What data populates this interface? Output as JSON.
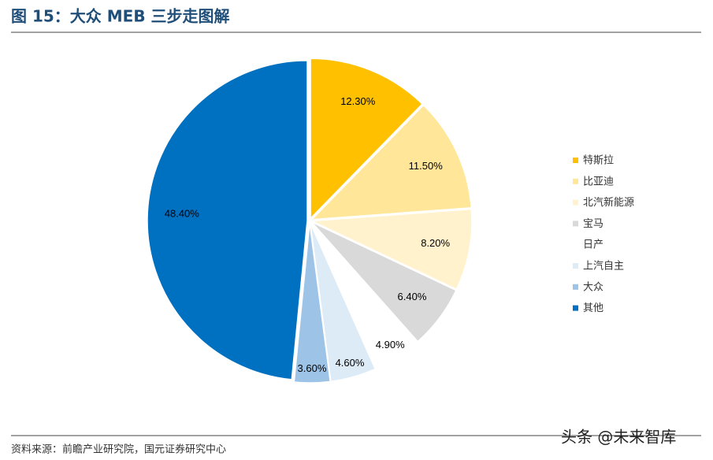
{
  "chart_data": {
    "type": "pie",
    "title": "图 15：大众 MEB 三步走图解",
    "categories": [
      "特斯拉",
      "比亚迪",
      "北汽新能源",
      "宝马",
      "日产",
      "上汽自主",
      "大众",
      "其他"
    ],
    "values": [
      12.3,
      11.5,
      8.2,
      6.4,
      4.9,
      4.6,
      3.6,
      48.4
    ],
    "value_labels": [
      "12.30%",
      "11.50%",
      "8.20%",
      "6.40%",
      "4.90%",
      "4.60%",
      "3.60%",
      "48.40%"
    ],
    "colors": [
      "#ffc000",
      "#ffe699",
      "#fff2cc",
      "#d9d9d9",
      "#ffffff",
      "#ddebf7",
      "#9dc3e6",
      "#0070c0"
    ],
    "legend": "right",
    "source": "资料来源：前瞻产业研究院，国元证券研究中心",
    "watermark": "头条 @未来智库"
  }
}
